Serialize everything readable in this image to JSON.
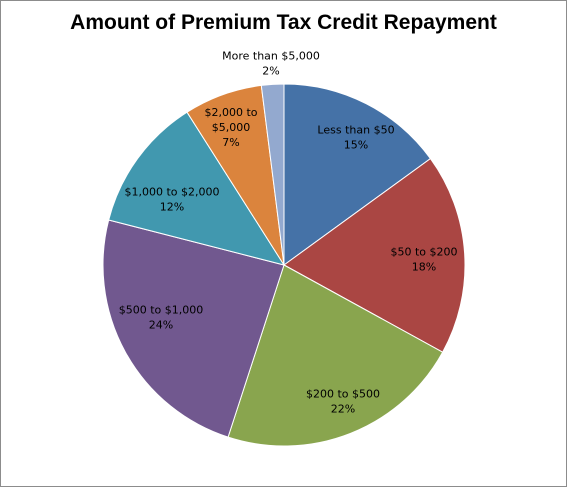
{
  "chart_data": {
    "type": "pie",
    "title": "Amount of Premium Tax Credit Repayment",
    "start_angle_deg": 0,
    "direction": "clockwise",
    "slices": [
      {
        "label_lines": [
          "Less than $50"
        ],
        "percent_label": "15%",
        "value": 15,
        "color": "#4572a7"
      },
      {
        "label_lines": [
          "$50 to $200"
        ],
        "percent_label": "18%",
        "value": 18,
        "color": "#aa4643"
      },
      {
        "label_lines": [
          "$200 to $500"
        ],
        "percent_label": "22%",
        "value": 22,
        "color": "#89a54e"
      },
      {
        "label_lines": [
          "$500 to $1,000"
        ],
        "percent_label": "24%",
        "value": 24,
        "color": "#71588f"
      },
      {
        "label_lines": [
          "$1,000 to $2,000"
        ],
        "percent_label": "12%",
        "value": 12,
        "color": "#4198af"
      },
      {
        "label_lines": [
          "$2,000 to",
          "$5,000"
        ],
        "percent_label": "7%",
        "value": 7,
        "color": "#db843d"
      },
      {
        "label_lines": [
          "More than $5,000"
        ],
        "percent_label": "2%",
        "value": 2,
        "color": "#93a9cf"
      }
    ]
  }
}
